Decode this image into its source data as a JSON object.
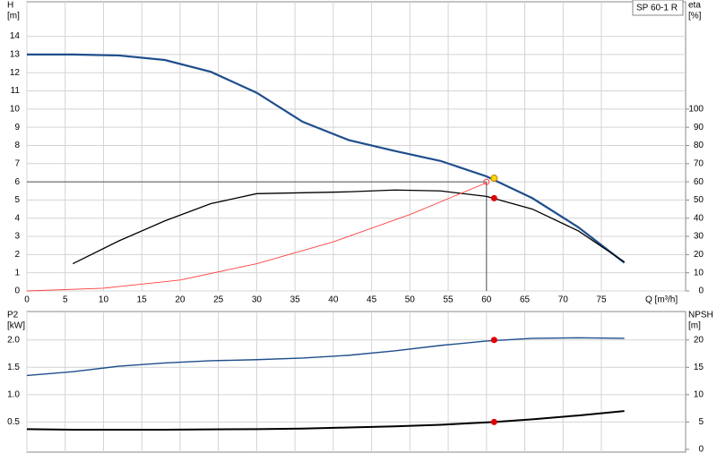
{
  "chart_data": [
    {
      "type": "line",
      "legend_text": "SP 60-1 R",
      "ylabel": "H",
      "yunit": "[m]",
      "y2label": "eta",
      "y2unit": "[%]",
      "xlabel": "Q [m³/h]",
      "xlim": [
        0,
        86
      ],
      "xticks": [
        0,
        5,
        10,
        15,
        20,
        25,
        30,
        35,
        40,
        45,
        50,
        55,
        60,
        65,
        70,
        75
      ],
      "show_xtick_labels": true,
      "ylim": [
        0,
        15.9
      ],
      "yticks": [
        0,
        1,
        2,
        3,
        4,
        5,
        6,
        7,
        8,
        9,
        10,
        11,
        12,
        13,
        14
      ],
      "y2lim": [
        0,
        159
      ],
      "y2ticks": [
        0,
        10,
        20,
        30,
        40,
        50,
        60,
        70,
        80,
        90,
        100
      ],
      "grid": true,
      "series": [
        {
          "color": "#1f4e8c",
          "width": 2.2,
          "x": [
            0,
            6,
            12,
            18,
            24,
            30,
            36,
            42,
            48,
            54,
            60,
            66,
            72,
            78
          ],
          "values": [
            13,
            13,
            12.95,
            12.7,
            12.05,
            10.9,
            9.3,
            8.3,
            7.7,
            7.15,
            6.3,
            5.1,
            3.5,
            1.55
          ]
        },
        {
          "color": "#000000",
          "width": 1.3,
          "axis": "y2",
          "x": [
            6,
            12,
            18,
            24,
            30,
            36,
            42,
            48,
            54,
            60,
            66,
            72,
            78
          ],
          "values": [
            15,
            27.5,
            38.5,
            48,
            53.5,
            54,
            54.5,
            55.5,
            55,
            52,
            45,
            33,
            16
          ]
        },
        {
          "color": "#ff4040",
          "width": 0.9,
          "x": [
            0,
            10,
            20,
            30,
            40,
            50,
            60
          ],
          "values": [
            0,
            0.15,
            0.6,
            1.5,
            2.7,
            4.2,
            5.95
          ]
        }
      ],
      "reference": {
        "x": 60,
        "y": 6
      },
      "markers": [
        {
          "x": 61,
          "value": 6.2,
          "axis": "y",
          "color": "#ffd400"
        },
        {
          "x": 61,
          "value": 51,
          "axis": "y2",
          "color": "#e00000"
        }
      ]
    },
    {
      "type": "line",
      "ylabel": "P2",
      "yunit": "[kW]",
      "y2label": "NPSH",
      "y2unit": "[m]",
      "xlim": [
        0,
        86
      ],
      "xticks": [
        0,
        5,
        10,
        15,
        20,
        25,
        30,
        35,
        40,
        45,
        50,
        55,
        60,
        65,
        70,
        75
      ],
      "show_xtick_labels": false,
      "ylim": [
        -0.05,
        2.52
      ],
      "yticks": [
        {
          "value": 0.5,
          "label": "0.5"
        },
        {
          "value": 1,
          "label": "1.0"
        },
        1.5,
        {
          "value": 2,
          "label": "2.0"
        }
      ],
      "y2lim": [
        -0.5,
        25.2
      ],
      "y2ticks": [
        0,
        5,
        10,
        15,
        20
      ],
      "grid": true,
      "series": [
        {
          "color": "#1f4e8c",
          "width": 1.4,
          "x": [
            0,
            6,
            12,
            18,
            24,
            30,
            36,
            42,
            48,
            54,
            60,
            66,
            72,
            78
          ],
          "values": [
            1.35,
            1.42,
            1.52,
            1.58,
            1.62,
            1.64,
            1.67,
            1.72,
            1.8,
            1.9,
            1.98,
            2.03,
            2.04,
            2.03
          ]
        },
        {
          "color": "#000000",
          "width": 2,
          "axis": "y2",
          "x": [
            0,
            6,
            12,
            18,
            24,
            30,
            36,
            42,
            48,
            54,
            61,
            66,
            72,
            78
          ],
          "values": [
            3.7,
            3.6,
            3.6,
            3.6,
            3.65,
            3.7,
            3.8,
            4,
            4.2,
            4.5,
            5,
            5.5,
            6.2,
            7
          ]
        }
      ],
      "markers": [
        {
          "x": 61,
          "value": 2,
          "axis": "y",
          "color": "#e00000"
        },
        {
          "x": 61,
          "value": 5,
          "axis": "y2",
          "color": "#e00000"
        }
      ]
    }
  ]
}
